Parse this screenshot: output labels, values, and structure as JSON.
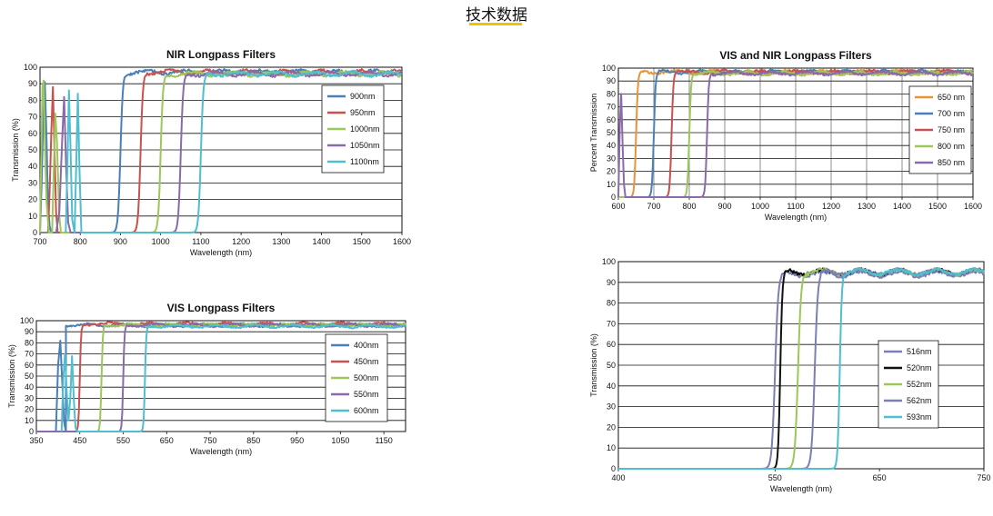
{
  "page": {
    "title": "技术数据",
    "accent_color": "#f2c200"
  },
  "colors": {
    "blue": "#4a7fb8",
    "red": "#c9514f",
    "green": "#9cc75a",
    "purple": "#8a6aab",
    "cyan": "#4fbfd0",
    "orange": "#e8923a",
    "black": "#111111",
    "slate": "#7b7fb3"
  },
  "chart_data": [
    {
      "id": "nir",
      "type": "line",
      "title": "NIR Longpass Filters",
      "xlabel": "Wavelength (nm)",
      "ylabel": "Transmission (%)",
      "xlim": [
        700,
        1600
      ],
      "ylim": [
        0,
        100
      ],
      "xticks": [
        700,
        800,
        900,
        1000,
        1100,
        1200,
        1300,
        1400,
        1500,
        1600
      ],
      "yticks": [
        0,
        10,
        20,
        30,
        40,
        50,
        60,
        70,
        80,
        90,
        100
      ],
      "grid": "horizontal",
      "legend_position": "right",
      "series": [
        {
          "name": "900nm",
          "color": "blue",
          "cut_on": 900,
          "rise_width": 12,
          "plateau": 97,
          "osc": [
            [
              700,
              0
            ],
            [
              704,
              30
            ],
            [
              708,
              68
            ],
            [
              712,
              91
            ],
            [
              716,
              58
            ],
            [
              720,
              18
            ],
            [
              724,
              4
            ],
            [
              728,
              0
            ]
          ]
        },
        {
          "name": "950nm",
          "color": "red",
          "cut_on": 950,
          "rise_width": 12,
          "plateau": 97,
          "osc": [
            [
              720,
              0
            ],
            [
              724,
              25
            ],
            [
              728,
              60
            ],
            [
              732,
              88
            ],
            [
              736,
              50
            ],
            [
              740,
              12
            ],
            [
              744,
              0
            ]
          ]
        },
        {
          "name": "1000nm",
          "color": "green",
          "cut_on": 1000,
          "rise_width": 12,
          "plateau": 96,
          "osc": [
            [
              700,
              0
            ],
            [
              703,
              45
            ],
            [
              706,
              88
            ],
            [
              709,
              92
            ],
            [
              712,
              55
            ],
            [
              716,
              20
            ],
            [
              722,
              0
            ],
            [
              730,
              0
            ],
            [
              734,
              35
            ],
            [
              738,
              72
            ],
            [
              742,
              55
            ],
            [
              748,
              10
            ],
            [
              752,
              0
            ]
          ]
        },
        {
          "name": "1050nm",
          "color": "purple",
          "cut_on": 1050,
          "rise_width": 12,
          "plateau": 96,
          "osc": [
            [
              740,
              0
            ],
            [
              748,
              12
            ],
            [
              755,
              55
            ],
            [
              760,
              82
            ],
            [
              765,
              40
            ],
            [
              770,
              6
            ],
            [
              776,
              0
            ]
          ]
        },
        {
          "name": "1100nm",
          "color": "cyan",
          "cut_on": 1100,
          "rise_width": 12,
          "plateau": 96,
          "osc": [
            [
              764,
              0
            ],
            [
              768,
              40
            ],
            [
              772,
              86
            ],
            [
              776,
              50
            ],
            [
              780,
              8
            ],
            [
              786,
              0
            ],
            [
              790,
              40
            ],
            [
              794,
              84
            ],
            [
              798,
              40
            ],
            [
              803,
              0
            ]
          ]
        }
      ]
    },
    {
      "id": "vis-nir",
      "type": "line",
      "title": "VIS and NIR Longpass Filters",
      "xlabel": "Wavelength (nm)",
      "ylabel": "Percent Transmission",
      "xlim": [
        600,
        1600
      ],
      "ylim": [
        0,
        100
      ],
      "xticks": [
        600,
        700,
        800,
        900,
        1000,
        1100,
        1200,
        1300,
        1400,
        1500,
        1600
      ],
      "yticks": [
        0,
        10,
        20,
        30,
        40,
        50,
        60,
        70,
        80,
        90,
        100
      ],
      "grid": "both",
      "legend_position": "right",
      "series": [
        {
          "name": "650 nm",
          "color": "orange",
          "cut_on": 650,
          "rise_width": 10,
          "plateau": 97,
          "osc": []
        },
        {
          "name": "700 nm",
          "color": "blue",
          "cut_on": 700,
          "rise_width": 10,
          "plateau": 97,
          "osc": []
        },
        {
          "name": "750 nm",
          "color": "red",
          "cut_on": 750,
          "rise_width": 10,
          "plateau": 97,
          "osc": []
        },
        {
          "name": "800 nm",
          "color": "green",
          "cut_on": 800,
          "rise_width": 10,
          "plateau": 96,
          "osc": []
        },
        {
          "name": "850 nm",
          "color": "purple",
          "cut_on": 850,
          "rise_width": 10,
          "plateau": 96,
          "osc": [
            [
              600,
              0
            ],
            [
              604,
              55
            ],
            [
              608,
              80
            ],
            [
              612,
              40
            ],
            [
              616,
              10
            ],
            [
              620,
              0
            ]
          ]
        }
      ]
    },
    {
      "id": "vis",
      "type": "line",
      "title": "VIS Longpass Filters",
      "xlabel": "Wavelength (nm)",
      "ylabel": "Transmission (%)",
      "xlim": [
        350,
        1200
      ],
      "ylim": [
        0,
        100
      ],
      "xticks": [
        350,
        450,
        550,
        650,
        750,
        850,
        950,
        1050,
        1150
      ],
      "yticks": [
        0,
        10,
        20,
        30,
        40,
        50,
        60,
        70,
        80,
        90,
        100
      ],
      "grid": "horizontal",
      "legend_position": "right",
      "series": [
        {
          "name": "400nm",
          "color": "blue",
          "cut_on": 400,
          "rise_width": 5,
          "plateau": 96,
          "osc": [
            [
              395,
              0
            ],
            [
              400,
              60
            ],
            [
              405,
              82
            ],
            [
              410,
              40
            ],
            [
              414,
              8
            ],
            [
              418,
              0
            ]
          ]
        },
        {
          "name": "450nm",
          "color": "red",
          "cut_on": 450,
          "rise_width": 6,
          "plateau": 97,
          "osc": []
        },
        {
          "name": "500nm",
          "color": "green",
          "cut_on": 500,
          "rise_width": 6,
          "plateau": 96,
          "osc": []
        },
        {
          "name": "550nm",
          "color": "purple",
          "cut_on": 550,
          "rise_width": 6,
          "plateau": 96,
          "osc": []
        },
        {
          "name": "600nm",
          "color": "cyan",
          "cut_on": 600,
          "rise_width": 6,
          "plateau": 95,
          "osc": [
            [
              408,
              0
            ],
            [
              412,
              48
            ],
            [
              416,
              70
            ],
            [
              420,
              35
            ],
            [
              424,
              10
            ],
            [
              428,
              30
            ],
            [
              432,
              68
            ],
            [
              436,
              30
            ],
            [
              440,
              4
            ],
            [
              444,
              0
            ]
          ]
        }
      ]
    },
    {
      "id": "vis-narrow",
      "type": "line",
      "title": "",
      "xlabel": "Wavelength (nm)",
      "ylabel": "Transmission (%)",
      "xlim": [
        400,
        750
      ],
      "ylim": [
        0,
        100
      ],
      "xticks": [
        400,
        550,
        650,
        750
      ],
      "yticks": [
        0,
        10,
        20,
        30,
        40,
        50,
        60,
        70,
        80,
        90,
        100
      ],
      "grid": "horizontal",
      "legend_position": "right",
      "series": [
        {
          "name": "516nm",
          "color": "slate",
          "cut_on": 550,
          "rise_width": 6,
          "plateau": 94,
          "osc": []
        },
        {
          "name": "520nm",
          "color": "black",
          "cut_on": 555,
          "rise_width": 4,
          "plateau": 95,
          "osc": []
        },
        {
          "name": "552nm",
          "color": "green",
          "cut_on": 572,
          "rise_width": 6,
          "plateau": 95,
          "osc": []
        },
        {
          "name": "562nm",
          "color": "slate",
          "cut_on": 588,
          "rise_width": 6,
          "plateau": 95,
          "osc": []
        },
        {
          "name": "593nm",
          "color": "cyan",
          "cut_on": 612,
          "rise_width": 4,
          "plateau": 95,
          "osc": []
        }
      ]
    }
  ]
}
